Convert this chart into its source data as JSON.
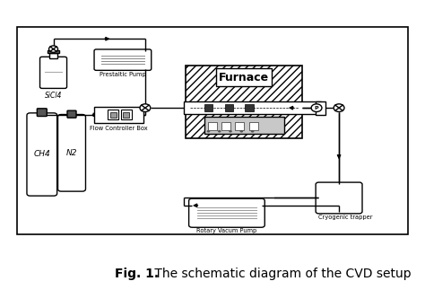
{
  "title_bold": "Fig. 1.",
  "title_rest": " The schematic diagram of the CVD setup",
  "title_fontsize": 10,
  "background_color": "#ffffff",
  "line_color": "#000000",
  "labels": {
    "sicl4": "SiCl4",
    "prestaltic_pump": "Prestaltic Pump",
    "flow_controller": "Flow Controller Box",
    "furnace": "Furnace",
    "ch4": "CH4",
    "n2": "N2",
    "rotary_pump": "Rotary Vacum Pump",
    "cryogenic": "Cryogenic trapper"
  },
  "xlim": [
    0,
    10
  ],
  "ylim": [
    0,
    8.5
  ]
}
